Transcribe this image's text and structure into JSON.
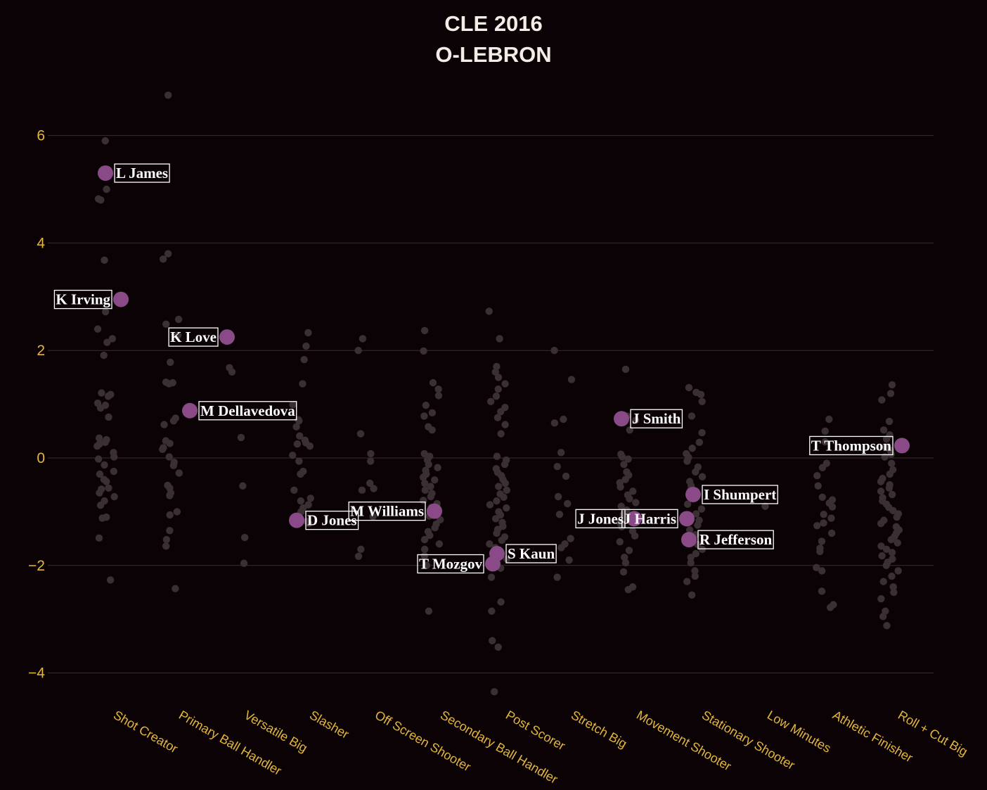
{
  "header": {
    "title_line1": "CLE 2016",
    "title_line2": "O-LEBRON"
  },
  "colors": {
    "background": "#0b0206",
    "highlight": "#8a4a87",
    "background_dot": "#3a3034",
    "tick": "#e4b739",
    "grid": "#3a2d32"
  },
  "chart_data": {
    "type": "scatter",
    "title": "CLE 2016 O-LEBRON",
    "xlabel": "",
    "ylabel": "",
    "categories": [
      "Shot Creator",
      "Primary Ball Handler",
      "Versatile Big",
      "Slasher",
      "Off Screen Shooter",
      "Secondary Ball Handler",
      "Post Scorer",
      "Stretch Big",
      "Movement Shooter",
      "Stationary Shooter",
      "Low Minutes",
      "Athletic Finisher",
      "Roll + Cut Big"
    ],
    "ylim": [
      -4.6,
      7.2
    ],
    "yticks": [
      -4,
      -2,
      0,
      2,
      4,
      6
    ],
    "ytick_labels": [
      "−4",
      "−2",
      "0",
      "2",
      "4",
      "6"
    ],
    "grid": true,
    "highlighted": [
      {
        "name": "L James",
        "category": "Shot Creator",
        "y": 5.3
      },
      {
        "name": "K Irving",
        "category": "Shot Creator",
        "y": 2.95
      },
      {
        "name": "K Love",
        "category": "Versatile Big",
        "y": 2.25
      },
      {
        "name": "M Dellavedova",
        "category": "Primary Ball Handler",
        "y": 0.88
      },
      {
        "name": "D Jones",
        "category": "Slasher",
        "y": -1.16
      },
      {
        "name": "M Williams",
        "category": "Secondary Ball Handler",
        "y": -0.99
      },
      {
        "name": "S Kaun",
        "category": "Post Scorer",
        "y": -1.78
      },
      {
        "name": "T Mozgov",
        "category": "Post Scorer",
        "y": -1.97
      },
      {
        "name": "J Smith",
        "category": "Movement Shooter",
        "y": 0.73
      },
      {
        "name": "J Jones",
        "category": "Movement Shooter",
        "y": -1.13
      },
      {
        "name": "J Harris",
        "category": "Stationary Shooter",
        "y": -1.13
      },
      {
        "name": "I Shumpert",
        "category": "Stationary Shooter",
        "y": -0.68
      },
      {
        "name": "R Jefferson",
        "category": "Stationary Shooter",
        "y": -1.52
      },
      {
        "name": "T Thompson",
        "category": "Roll + Cut Big",
        "y": 0.23
      }
    ],
    "league": [
      {
        "category": "Shot Creator",
        "y": [
          5.9,
          5.0,
          4.82,
          4.8,
          3.68,
          2.72,
          2.4,
          2.22,
          2.15,
          1.91,
          1.21,
          1.18,
          1.15,
          1.02,
          0.98,
          0.93,
          0.76,
          0.37,
          0.34,
          0.29,
          0.26,
          0.22,
          0.1,
          0.02,
          -0.02,
          -0.13,
          -0.25,
          -0.3,
          -0.4,
          -0.44,
          -0.56,
          -0.58,
          -0.65,
          -0.72,
          -0.8,
          -0.88,
          -1.1,
          -1.12,
          -1.49,
          -2.27
        ]
      },
      {
        "category": "Primary Ball Handler",
        "y": [
          6.75,
          3.8,
          3.7,
          2.58,
          2.49,
          2.28,
          1.78,
          1.41,
          1.4,
          1.38,
          0.74,
          0.69,
          0.62,
          0.32,
          0.27,
          0.19,
          0.16,
          0.02,
          -0.08,
          -0.14,
          -0.28,
          -0.51,
          -0.56,
          -0.65,
          -0.7,
          -1.0,
          -1.06,
          -1.35,
          -1.52,
          -1.64,
          -2.43
        ]
      },
      {
        "category": "Versatile Big",
        "y": [
          1.68,
          1.6,
          0.38,
          -0.52,
          -1.48,
          -1.96
        ]
      },
      {
        "category": "Slasher",
        "y": [
          2.33,
          2.08,
          1.83,
          1.38,
          0.99,
          0.71,
          0.69,
          0.58,
          0.41,
          0.33,
          0.28,
          0.26,
          0.22,
          0.05,
          -0.06,
          -0.25,
          -0.3,
          -0.6,
          -0.75,
          -0.8,
          -0.87,
          -0.93,
          -1.0,
          -1.12,
          -1.18,
          -1.22
        ]
      },
      {
        "category": "Off Screen Shooter",
        "y": [
          2.22,
          2.0,
          0.45,
          0.08,
          -0.06,
          -0.47,
          -0.57,
          -0.6,
          -1.09,
          -1.7,
          -1.83
        ]
      },
      {
        "category": "Secondary Ball Handler",
        "y": [
          2.37,
          1.99,
          1.4,
          1.28,
          1.16,
          0.98,
          0.84,
          0.78,
          0.58,
          0.52,
          0.08,
          0.03,
          -0.04,
          -0.12,
          -0.18,
          -0.23,
          -0.3,
          -0.36,
          -0.41,
          -0.47,
          -0.53,
          -0.6,
          -0.66,
          -0.72,
          -0.79,
          -0.85,
          -0.92,
          -1.0,
          -1.08,
          -1.15,
          -1.23,
          -1.3,
          -1.37,
          -1.44,
          -1.52,
          -1.6,
          -1.7,
          -1.82,
          -2.0,
          -2.85
        ]
      },
      {
        "category": "Post Scorer",
        "y": [
          2.73,
          2.22,
          1.7,
          1.6,
          1.5,
          1.38,
          1.28,
          1.15,
          1.05,
          0.94,
          0.86,
          0.75,
          0.62,
          0.45,
          0.03,
          -0.04,
          -0.12,
          -0.2,
          -0.27,
          -0.33,
          -0.4,
          -0.47,
          -0.53,
          -0.6,
          -0.67,
          -0.73,
          -0.8,
          -0.87,
          -0.93,
          -1.0,
          -1.06,
          -1.13,
          -1.2,
          -1.27,
          -1.33,
          -1.4,
          -1.47,
          -1.53,
          -1.6,
          -1.67,
          -1.75,
          -1.88,
          -2.05,
          -2.22,
          -2.68,
          -2.85,
          -3.4,
          -3.52,
          -4.35
        ]
      },
      {
        "category": "Stretch Big",
        "y": [
          2.0,
          1.46,
          0.72,
          0.65,
          0.1,
          -0.16,
          -0.34,
          -0.72,
          -0.85,
          -1.05,
          -1.5,
          -1.6,
          -1.67,
          -1.9,
          -2.22
        ]
      },
      {
        "category": "Movement Shooter",
        "y": [
          1.65,
          0.78,
          0.7,
          0.52,
          0.07,
          0.02,
          -0.02,
          -0.12,
          -0.26,
          -0.32,
          -0.4,
          -0.46,
          -0.54,
          -0.62,
          -0.69,
          -0.76,
          -0.83,
          -0.9,
          -0.97,
          -1.05,
          -1.12,
          -1.2,
          -1.28,
          -1.36,
          -1.45,
          -1.56,
          -1.72,
          -1.85,
          -1.95,
          -2.12,
          -2.4,
          -2.45
        ]
      },
      {
        "category": "Stationary Shooter",
        "y": [
          1.31,
          1.22,
          1.18,
          1.05,
          0.78,
          0.47,
          0.29,
          0.18,
          0.08,
          0.01,
          -0.06,
          -0.17,
          -0.26,
          -0.35,
          -0.44,
          -0.52,
          -0.6,
          -0.86,
          -0.95,
          -1.04,
          -1.16,
          -1.25,
          -1.34,
          -1.43,
          -1.52,
          -1.61,
          -1.7,
          -1.78,
          -1.85,
          -1.95,
          -2.1,
          -2.2,
          -2.3,
          -2.55
        ]
      },
      {
        "category": "Low Minutes",
        "y": [
          -0.9
        ]
      },
      {
        "category": "Athletic Finisher",
        "y": [
          0.72,
          0.5,
          0.3,
          -0.1,
          -0.18,
          -0.33,
          -0.52,
          -0.73,
          -0.78,
          -0.84,
          -0.91,
          -1.05,
          -1.12,
          -1.21,
          -1.26,
          -1.4,
          -1.55,
          -1.68,
          -1.74,
          -2.04,
          -2.1,
          -2.48,
          -2.73,
          -2.78
        ]
      },
      {
        "category": "Roll + Cut Big",
        "y": [
          1.36,
          1.2,
          1.08,
          0.68,
          0.52,
          0.43,
          0.35,
          0.21,
          0.14,
          0.07,
          0.02,
          -0.1,
          -0.22,
          -0.3,
          -0.38,
          -0.44,
          -0.5,
          -0.56,
          -0.62,
          -0.68,
          -0.74,
          -0.8,
          -0.86,
          -0.92,
          -0.98,
          -1.04,
          -1.1,
          -1.16,
          -1.22,
          -1.28,
          -1.34,
          -1.4,
          -1.46,
          -1.52,
          -1.58,
          -1.64,
          -1.7,
          -1.76,
          -1.82,
          -1.88,
          -1.94,
          -2.0,
          -2.1,
          -2.2,
          -2.3,
          -2.4,
          -2.5,
          -2.62,
          -2.85,
          -2.95,
          -3.12
        ]
      }
    ]
  }
}
